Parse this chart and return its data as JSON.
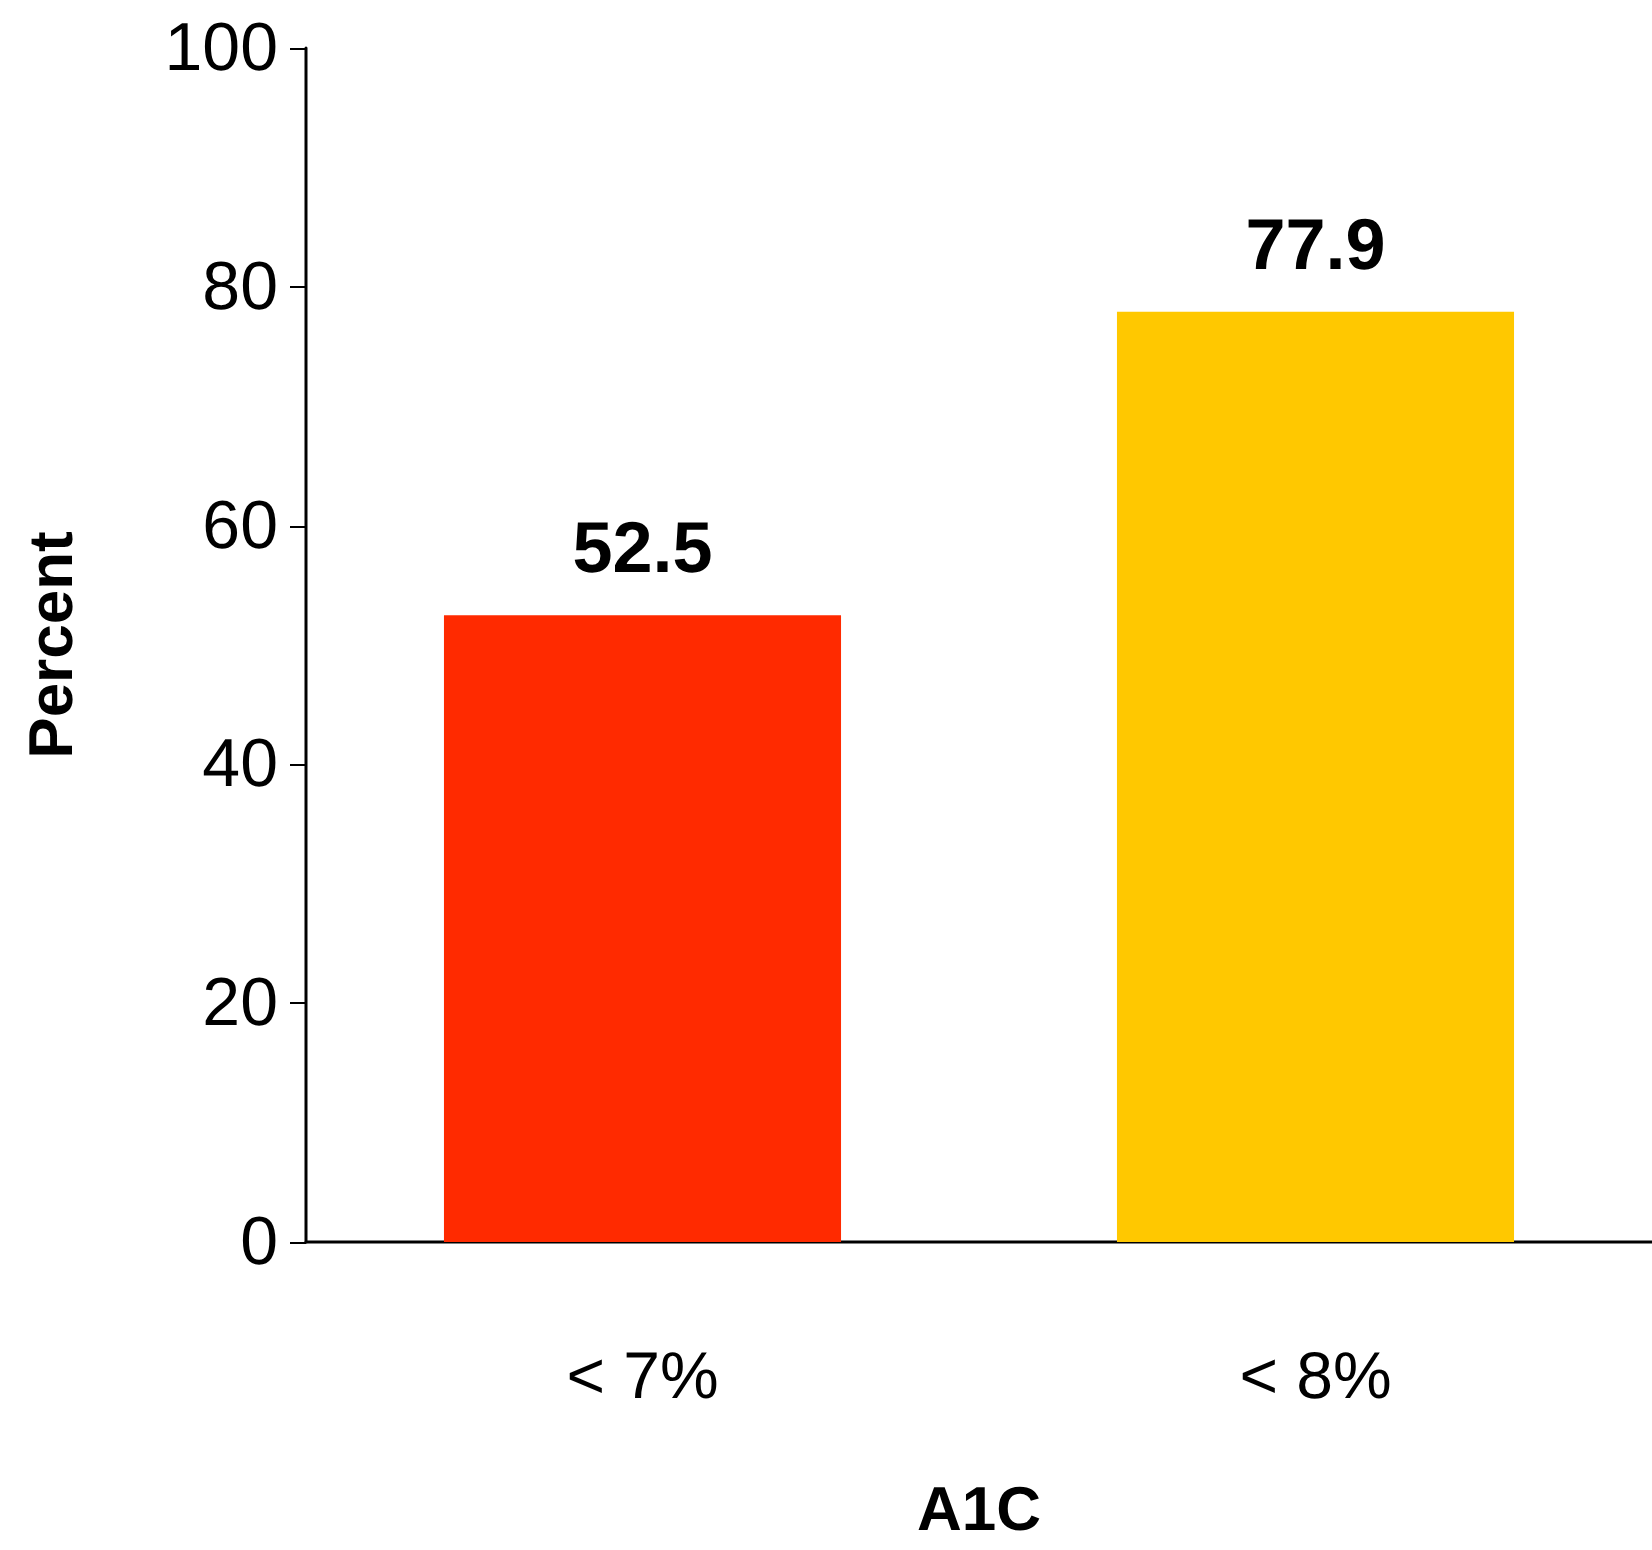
{
  "chart_data": {
    "type": "bar",
    "xlabel": "A1C",
    "ylabel": "Percent",
    "categories": [
      "< 7%",
      "< 8%"
    ],
    "values": [
      52.5,
      77.9
    ],
    "colors": [
      "#ff2a00",
      "#ffc800"
    ],
    "ylim": [
      0,
      100
    ],
    "yticks": [
      0,
      20,
      40,
      60,
      80,
      100
    ],
    "grid": false,
    "data_labels": true
  }
}
